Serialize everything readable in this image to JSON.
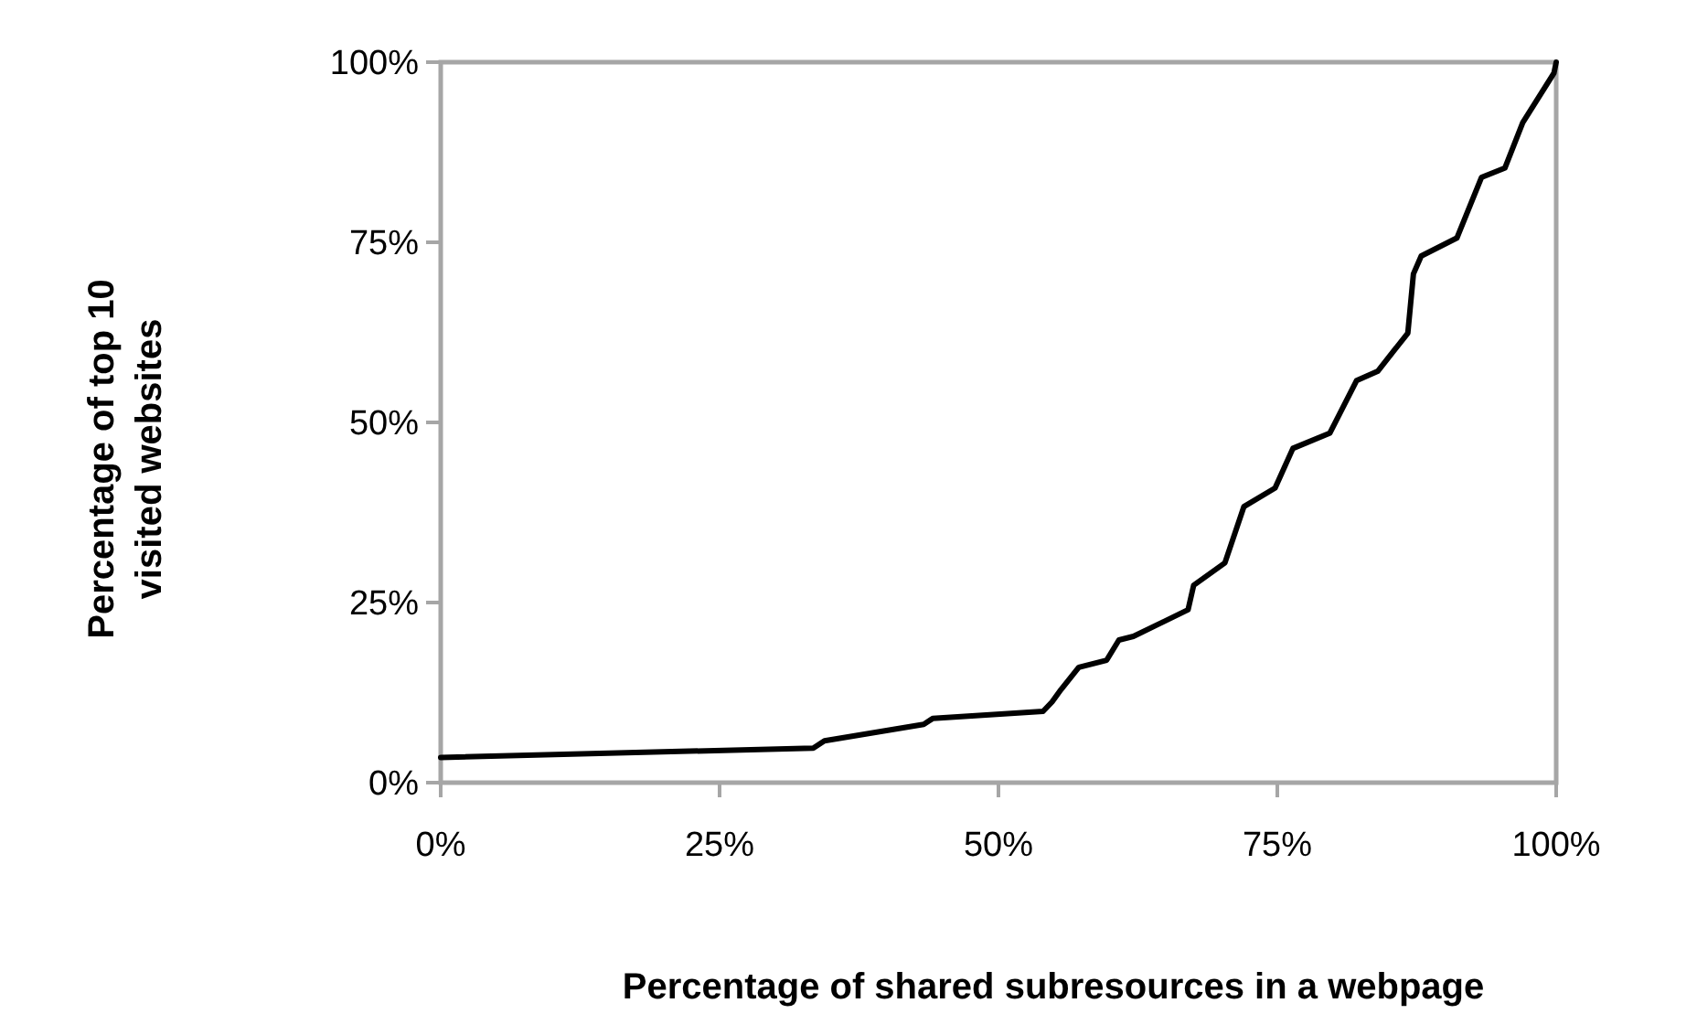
{
  "chart_data": {
    "type": "line",
    "xlabel": "Percentage of shared subresources in a webpage",
    "ylabel": "Percentage of top 10 visited websites",
    "x": [
      0,
      33.4,
      34.4,
      43.3,
      44.1,
      54,
      54.8,
      55.6,
      57.2,
      59.7,
      60.8,
      62.1,
      67,
      67.5,
      70.3,
      72,
      74.8,
      76.4,
      79.7,
      82.1,
      84,
      86.7,
      87.2,
      87.9,
      91.1,
      93.3,
      95.4,
      97,
      99.8,
      100
    ],
    "series": [
      {
        "color": "#000000",
        "values": [
          3.5,
          4.8,
          5.8,
          8.1,
          8.9,
          9.9,
          11.2,
          12.9,
          16,
          17,
          19.8,
          20.3,
          24,
          27.4,
          30.5,
          38.3,
          40.9,
          46.4,
          48.5,
          55.8,
          57.1,
          62.4,
          70.6,
          73.1,
          75.6,
          84,
          85.3,
          91.6,
          98.5,
          100
        ]
      }
    ],
    "xlim": [
      0,
      100
    ],
    "ylim": [
      0,
      100
    ],
    "xticks": [
      {
        "value": 0,
        "label": "0%"
      },
      {
        "value": 25,
        "label": "25%"
      },
      {
        "value": 50,
        "label": "50%"
      },
      {
        "value": 75,
        "label": "75%"
      },
      {
        "value": 100,
        "label": "100%"
      }
    ],
    "yticks": [
      {
        "value": 0,
        "label": "0%"
      },
      {
        "value": 25,
        "label": "25%"
      },
      {
        "value": 50,
        "label": "50%"
      },
      {
        "value": 75,
        "label": "75%"
      },
      {
        "value": 100,
        "label": "100%"
      }
    ],
    "grid": false,
    "marker": "none",
    "line_style": "solid"
  }
}
